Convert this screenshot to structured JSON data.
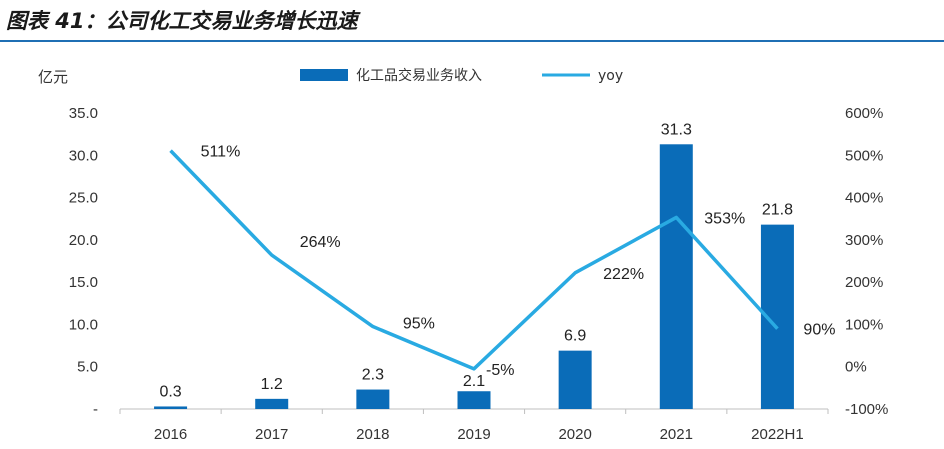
{
  "figure_title": "图表 41：公司化工交易业务增长迅速",
  "colors": {
    "bar": "#0a6cb8",
    "line": "#29aae2",
    "rule": "#1f6fb4"
  },
  "chart_data": {
    "type": "bar",
    "categories": [
      "2016",
      "2017",
      "2018",
      "2019",
      "2020",
      "2021",
      "2022H1"
    ],
    "series": [
      {
        "name": "化工品交易业务收入",
        "type": "bar",
        "axis": "left",
        "values": [
          0.3,
          1.2,
          2.3,
          2.1,
          6.9,
          31.3,
          21.8
        ],
        "labels": [
          "0.3",
          "1.2",
          "2.3",
          "2.1",
          "6.9",
          "31.3",
          "21.8"
        ]
      },
      {
        "name": "yoy",
        "type": "line",
        "axis": "right",
        "values": [
          511,
          264,
          95,
          -5,
          222,
          353,
          90
        ],
        "labels": [
          "511%",
          "264%",
          "95%",
          "-5%",
          "222%",
          "353%",
          "90%"
        ]
      }
    ],
    "ylabel": "亿元",
    "ylim": [
      0,
      35
    ],
    "y_ticks": [
      "35.0",
      "30.0",
      "25.0",
      "20.0",
      "15.0",
      "10.0",
      "5.0",
      "-"
    ],
    "y2lim": [
      -100,
      600
    ],
    "y2_ticks": [
      "600%",
      "500%",
      "400%",
      "300%",
      "200%",
      "100%",
      "0%",
      "-100%"
    ],
    "grid": false,
    "legend": "top-center"
  }
}
